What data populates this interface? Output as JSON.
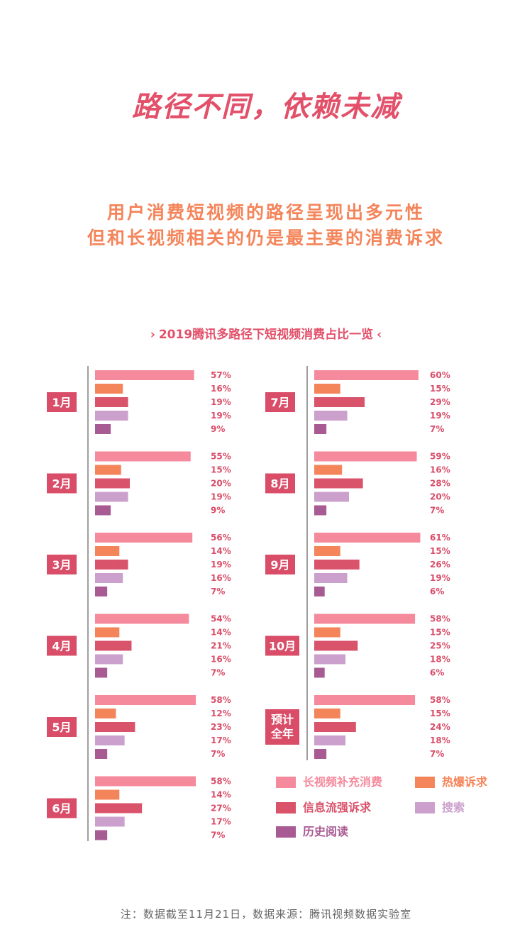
{
  "page": {
    "title": "路径不同，依赖未减",
    "subtitle_line1": "用户消费短视频的路径呈现出多元性",
    "subtitle_line2": "但和长视频相关的仍是最主要的消费诉求",
    "chart_heading": "2019腾讯多路径下短视频消费占比一览",
    "heading_left_glyph": "›",
    "heading_right_glyph": "‹",
    "footnote": "注：数据截至11月21日，数据来源：腾讯视频数据实验室"
  },
  "colors": {
    "title": "#e2506a",
    "subtitle": "#f4855b",
    "month_badge": "#d94d68",
    "axis": "#9e9e9e",
    "value_label": "#d94d68"
  },
  "chart_data": {
    "type": "bar",
    "orientation": "horizontal",
    "title": "2019腾讯多路径下短视频消费占比一览",
    "unit": "%",
    "series": [
      {
        "name": "长视频补充消费",
        "color": "#f58a9c"
      },
      {
        "name": "热爆诉求",
        "color": "#f4855b"
      },
      {
        "name": "信息流强诉求",
        "color": "#d9536b"
      },
      {
        "name": "搜索",
        "color": "#cca0cc"
      },
      {
        "name": "历史阅读",
        "color": "#a85a93"
      }
    ],
    "groups": [
      {
        "label": "1月",
        "values": [
          57,
          16,
          19,
          19,
          9
        ]
      },
      {
        "label": "2月",
        "values": [
          55,
          15,
          20,
          19,
          9
        ]
      },
      {
        "label": "3月",
        "values": [
          56,
          14,
          19,
          16,
          7
        ]
      },
      {
        "label": "4月",
        "values": [
          54,
          14,
          21,
          16,
          7
        ]
      },
      {
        "label": "5月",
        "values": [
          58,
          12,
          23,
          17,
          7
        ]
      },
      {
        "label": "6月",
        "values": [
          58,
          14,
          27,
          17,
          7
        ]
      },
      {
        "label": "7月",
        "values": [
          60,
          15,
          29,
          19,
          7
        ]
      },
      {
        "label": "8月",
        "values": [
          59,
          16,
          28,
          20,
          7
        ]
      },
      {
        "label": "9月",
        "values": [
          61,
          15,
          26,
          19,
          6
        ]
      },
      {
        "label": "10月",
        "values": [
          58,
          15,
          25,
          18,
          6
        ]
      },
      {
        "label": "预计全年",
        "values": [
          58,
          15,
          24,
          18,
          7
        ]
      }
    ]
  }
}
